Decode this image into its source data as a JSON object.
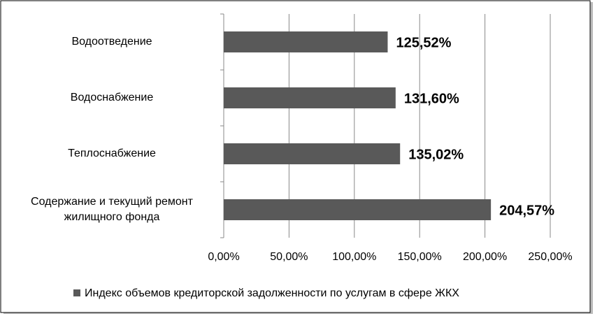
{
  "chart_data": {
    "type": "bar",
    "orientation": "horizontal",
    "categories": [
      "Водоотведение",
      "Водоснабжение",
      "Теплоснабжение",
      "Содержание и текущий ремонт жилищного фонда"
    ],
    "series": [
      {
        "name": "Индекс объемов кредиторской задолженности по услугам в сфере ЖКХ",
        "color": "#595959",
        "values": [
          125.52,
          131.6,
          135.02,
          204.57
        ],
        "value_labels": [
          "125,52%",
          "131,60%",
          "135,02%",
          "204,57%"
        ]
      }
    ],
    "xlim": [
      0,
      250
    ],
    "xticks": [
      {
        "value": 0,
        "label": "0,00%"
      },
      {
        "value": 50,
        "label": "50,00%"
      },
      {
        "value": 100,
        "label": "100,00%"
      },
      {
        "value": 150,
        "label": "150,00%"
      },
      {
        "value": 200,
        "label": "200,00%"
      },
      {
        "value": 250,
        "label": "250,00%"
      }
    ],
    "grid": true,
    "legend": "bottom"
  }
}
